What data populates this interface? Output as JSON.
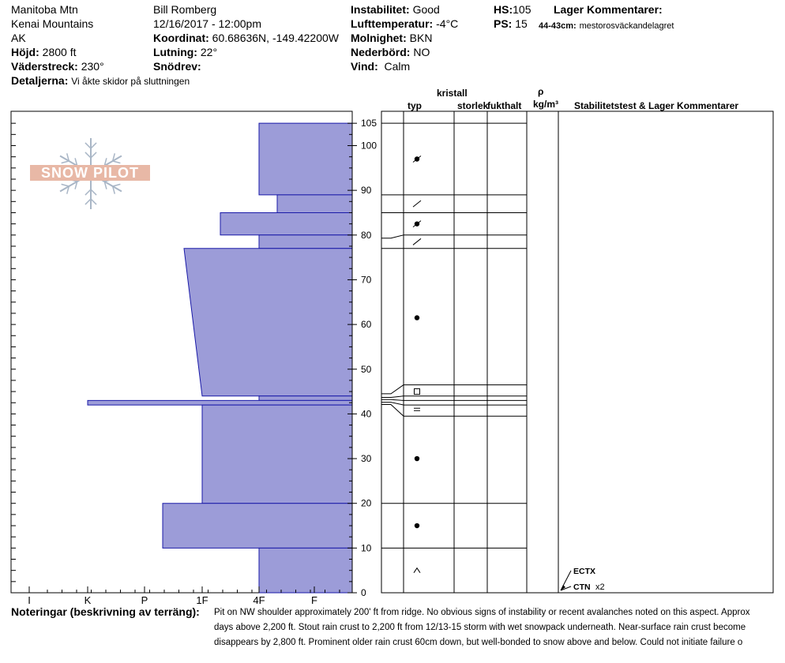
{
  "header": {
    "location": "Manitoba Mtn",
    "range": "Kenai Mountains",
    "state": "AK",
    "elevation_label": "Höjd:",
    "elevation": "2800 ft",
    "aspect_label": "Väderstreck:",
    "aspect": "230°",
    "details_label": "Detaljerna:",
    "details": "Vi åkte skidor på sluttningen",
    "observer": "Bill Romberg",
    "datetime": "12/16/2017 - 12:00pm",
    "coord_label": "Koordinat:",
    "coord": "60.68636N, -149.42200W",
    "slope_label": "Lutning:",
    "slope": "22°",
    "snowdrift_label": "Snödrev:",
    "snowdrift": "",
    "instability_label": "Instabilitet:",
    "instability": "Good",
    "airtemp_label": "Lufttemperatur:",
    "airtemp": "-4°C",
    "sky_label": "Molnighet:",
    "sky": "BKN",
    "precip_label": "Nederbörd:",
    "precip": "NO",
    "wind_label": "Vind:",
    "wind": "Calm",
    "hs_label": "HS:",
    "hs": "105",
    "ps_label": "PS:",
    "ps": "15",
    "layer_comments_label": "Lager Kommentarer:",
    "layer_comment_range": "44-43cm:",
    "layer_comment": "mestorosväckandelagret"
  },
  "table_headers": {
    "crystal": "kristall",
    "type": "typ",
    "size": "storlek",
    "moisture": "fukthalt",
    "rho": "ρ",
    "density_unit": "kg/m³",
    "stability": "Stabilitetstest & Lager Kommentarer"
  },
  "logo_text": "SNOW PILOT",
  "notes_label": "Noteringar (beskrivning av terräng):",
  "notes_lines": [
    "Pit on NW shoulder approximately 200' ft from ridge.  No obvious signs of instability or recent avalanches noted on this aspect.  Approx",
    "days above 2,200 ft.  Stout rain crust to 2,200 ft from 12/13-15 storm with wet snowpack underneath.  Near-surface rain crust become",
    "disappears by 2,800 ft.    Prominent older rain crust 60cm down, but well-bonded to snow above and below.  Could not initiate failure o"
  ],
  "tests": [
    {
      "label": "ECTX",
      "extra": ""
    },
    {
      "label": "CTN",
      "extra": "x2"
    }
  ],
  "chart_data": {
    "type": "snow-profile",
    "y_unit": "cm",
    "ylim": [
      0,
      105
    ],
    "y_ticks": [
      0,
      10,
      20,
      30,
      40,
      50,
      60,
      70,
      80,
      90,
      100,
      105
    ],
    "hardness_scale": [
      "I",
      "K",
      "P",
      "1F",
      "4F",
      "F"
    ],
    "layers": [
      {
        "bottom": 89,
        "top": 105,
        "hardness_top": "4F",
        "hardness_bottom": "4F"
      },
      {
        "bottom": 85,
        "top": 89,
        "hardness_top": "4F-",
        "hardness_bottom": "4F-"
      },
      {
        "bottom": 80,
        "top": 85,
        "hardness_top": "1F-",
        "hardness_bottom": "1F-"
      },
      {
        "bottom": 77,
        "top": 80,
        "hardness_top": "4F",
        "hardness_bottom": "4F"
      },
      {
        "bottom": 44,
        "top": 77,
        "hardness_top": "1F+",
        "hardness_bottom": "1F"
      },
      {
        "bottom": 43,
        "top": 44,
        "hardness_top": "4F",
        "hardness_bottom": "4F"
      },
      {
        "bottom": 42,
        "top": 43,
        "hardness_top": "K",
        "hardness_bottom": "K"
      },
      {
        "bottom": 20,
        "top": 42,
        "hardness_top": "1F",
        "hardness_bottom": "1F"
      },
      {
        "bottom": 10,
        "top": 20,
        "hardness_top": "P-",
        "hardness_bottom": "P-"
      },
      {
        "bottom": 0,
        "top": 10,
        "hardness_top": "4F",
        "hardness_bottom": "4F"
      }
    ],
    "boundaries": [
      105,
      89,
      85,
      80,
      77,
      46.5,
      44,
      43,
      42,
      39.5,
      20,
      10
    ],
    "grain_symbols": [
      {
        "height": 97,
        "symbol": "rounded-faceted"
      },
      {
        "height": 87,
        "symbol": "slash"
      },
      {
        "height": 82.5,
        "symbol": "rounded-faceted"
      },
      {
        "height": 78.5,
        "symbol": "slash"
      },
      {
        "height": 61.5,
        "symbol": "rounded"
      },
      {
        "height": 45,
        "symbol": "square"
      },
      {
        "height": 41,
        "symbol": "equals"
      },
      {
        "height": 30,
        "symbol": "rounded"
      },
      {
        "height": 15,
        "symbol": "rounded"
      },
      {
        "height": 5,
        "symbol": "caret"
      }
    ],
    "colors": {
      "layer_fill": "#9c9cd8",
      "layer_stroke": "#1a1aa8"
    }
  }
}
